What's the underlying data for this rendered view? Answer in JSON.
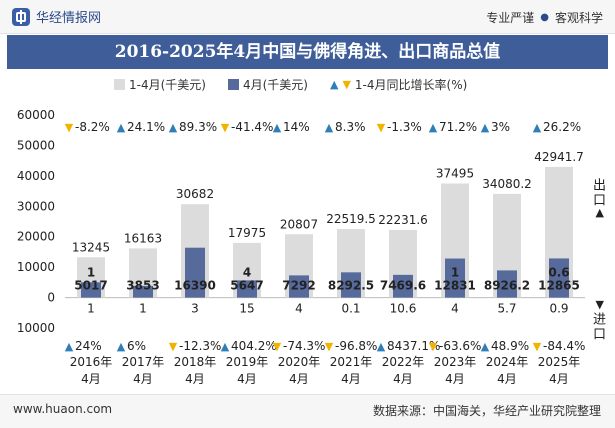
{
  "header": {
    "brand": "华经情报网",
    "tag1": "专业严谨",
    "tag2": "客观科学"
  },
  "title": "2016-2025年4月中国与佛得角进、出口商品总值",
  "legend": {
    "cumulative": "1-4月(千美元)",
    "monthly": "4月(千美元)",
    "growth": "1-4月同比增长率(%)"
  },
  "side": {
    "export": "出口",
    "import": "进口"
  },
  "footer": {
    "website": "www.huaon.com",
    "source": "数据来源：中国海关，华经产业研究院整理"
  },
  "colors": {
    "cumulative": "#dcdcdc",
    "monthly": "#566a9c",
    "up": "#2e7fb8",
    "down": "#f0b400"
  },
  "chart_data": {
    "type": "bar",
    "categories": [
      "2016年\n4月",
      "2017年\n4月",
      "2018年\n4月",
      "2019年\n4月",
      "2020年\n4月",
      "2021年\n4月",
      "2022年\n4月",
      "2023年\n4月",
      "2024年\n4月",
      "2025年\n4月"
    ],
    "ylim": [
      -10000,
      60000
    ],
    "yticks": [
      -10000,
      0,
      10000,
      20000,
      30000,
      40000,
      50000,
      60000
    ],
    "ytick_labels": [
      "10000",
      "0",
      "10000",
      "20000",
      "30000",
      "40000",
      "50000",
      "60000"
    ],
    "series": [
      {
        "name": "1-4月(千美元)",
        "export_values": [
          13245,
          16163,
          30682,
          17975,
          20807,
          22519.5,
          22231.6,
          37495,
          34080.2,
          42941.7
        ],
        "export_labels": [
          "13245",
          "16163",
          "30682",
          "17975",
          "20807",
          "22519.5",
          "22231.6",
          "37495",
          "34080.2",
          "42941.7"
        ],
        "import_values": [
          1,
          1,
          3,
          15,
          4,
          0.1,
          10.6,
          4,
          5.7,
          0.9
        ],
        "import_labels": [
          "1",
          "1",
          "3",
          "15",
          "4",
          "0.1",
          "10.6",
          "4",
          "5.7",
          "0.9"
        ]
      },
      {
        "name": "4月(千美元)",
        "export_values": [
          5017,
          3853,
          16390,
          5647,
          7292,
          8292.5,
          7469.6,
          12831,
          8926.2,
          12865
        ],
        "export_labels": [
          "5017",
          "3853",
          "16390",
          "5647",
          "7292",
          "8292.5",
          "7469.6",
          "12831",
          "8926.2",
          "12865"
        ],
        "import_values": [
          1,
          null,
          null,
          4,
          null,
          null,
          null,
          1,
          null,
          0.6
        ],
        "import_labels": [
          "1",
          "",
          "",
          "4",
          "",
          "",
          "",
          "1",
          "",
          "0.6"
        ]
      }
    ],
    "growth_export": {
      "name": "1-4月同比增长率(%)",
      "values": [
        -8.2,
        24.1,
        89.3,
        -41.4,
        14,
        8.3,
        -1.3,
        71.2,
        3,
        26.2
      ],
      "labels": [
        "-8.2%",
        "24.1%",
        "89.3%",
        "-41.4%",
        "14%",
        "8.3%",
        "-1.3%",
        "71.2%",
        "3%",
        "26.2%"
      ]
    },
    "growth_import": {
      "values": [
        24,
        6,
        -12.3,
        404.2,
        -74.3,
        -96.8,
        8437.1,
        -63.6,
        48.9,
        -84.4
      ],
      "labels": [
        "24%",
        "6%",
        "-12.3%",
        "404.2%",
        "-74.3%",
        "-96.8%",
        "8437.1%",
        "-63.6%",
        "48.9%",
        "-84.4%"
      ]
    }
  }
}
